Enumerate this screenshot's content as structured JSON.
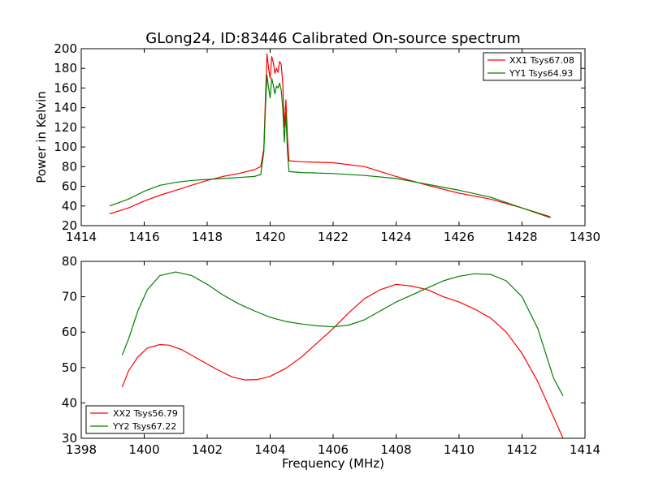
{
  "chart_data": [
    {
      "type": "line",
      "title": "GLong24, ID:83446 Calibrated On-source spectrum",
      "xlabel": "",
      "ylabel": "Power in Kelvin",
      "xlim": [
        1414,
        1430
      ],
      "ylim": [
        20,
        200
      ],
      "xticks": [
        1414,
        1416,
        1418,
        1420,
        1422,
        1424,
        1426,
        1428,
        1430
      ],
      "yticks": [
        20,
        40,
        60,
        80,
        100,
        120,
        140,
        160,
        180,
        200
      ],
      "legend_position": "top-right",
      "series": [
        {
          "name": "XX1 Tsys67.08",
          "color": "#ff0000",
          "points": [
            [
              1414.9,
              32
            ],
            [
              1415.5,
              38
            ],
            [
              1416.0,
              45
            ],
            [
              1416.5,
              51
            ],
            [
              1417.0,
              56
            ],
            [
              1417.5,
              61
            ],
            [
              1418.0,
              66
            ],
            [
              1418.5,
              70
            ],
            [
              1419.0,
              73
            ],
            [
              1419.5,
              77
            ],
            [
              1419.7,
              80
            ],
            [
              1419.8,
              98
            ],
            [
              1419.85,
              150
            ],
            [
              1419.9,
              195
            ],
            [
              1419.95,
              180
            ],
            [
              1420.0,
              170
            ],
            [
              1420.05,
              192
            ],
            [
              1420.1,
              186
            ],
            [
              1420.15,
              175
            ],
            [
              1420.2,
              180
            ],
            [
              1420.25,
              176
            ],
            [
              1420.3,
              187
            ],
            [
              1420.35,
              184
            ],
            [
              1420.4,
              165
            ],
            [
              1420.45,
              120
            ],
            [
              1420.5,
              148
            ],
            [
              1420.55,
              110
            ],
            [
              1420.6,
              86
            ],
            [
              1421.0,
              85
            ],
            [
              1422.0,
              84
            ],
            [
              1423.0,
              80
            ],
            [
              1424.0,
              70
            ],
            [
              1425.0,
              61
            ],
            [
              1426.0,
              53
            ],
            [
              1427.0,
              47
            ],
            [
              1428.0,
              38
            ],
            [
              1428.9,
              28
            ]
          ]
        },
        {
          "name": "YY1 Tsys64.93",
          "color": "#008000",
          "points": [
            [
              1414.9,
              40
            ],
            [
              1415.5,
              47
            ],
            [
              1416.0,
              55
            ],
            [
              1416.5,
              61
            ],
            [
              1417.0,
              64
            ],
            [
              1417.5,
              66
            ],
            [
              1418.0,
              67
            ],
            [
              1418.5,
              68
            ],
            [
              1419.0,
              69
            ],
            [
              1419.5,
              70
            ],
            [
              1419.7,
              72
            ],
            [
              1419.8,
              95
            ],
            [
              1419.85,
              140
            ],
            [
              1419.9,
              173
            ],
            [
              1419.95,
              160
            ],
            [
              1420.0,
              150
            ],
            [
              1420.05,
              170
            ],
            [
              1420.1,
              163
            ],
            [
              1420.15,
              154
            ],
            [
              1420.2,
              162
            ],
            [
              1420.25,
              160
            ],
            [
              1420.3,
              165
            ],
            [
              1420.35,
              158
            ],
            [
              1420.4,
              140
            ],
            [
              1420.45,
              105
            ],
            [
              1420.5,
              135
            ],
            [
              1420.55,
              95
            ],
            [
              1420.6,
              75
            ],
            [
              1421.0,
              74
            ],
            [
              1422.0,
              73
            ],
            [
              1423.0,
              71
            ],
            [
              1424.0,
              68
            ],
            [
              1425.0,
              62
            ],
            [
              1426.0,
              56
            ],
            [
              1427.0,
              49
            ],
            [
              1428.0,
              38
            ],
            [
              1428.9,
              29
            ]
          ]
        }
      ]
    },
    {
      "type": "line",
      "title": "",
      "xlabel": "Frequency (MHz)",
      "ylabel": "",
      "xlim": [
        1398,
        1414
      ],
      "ylim": [
        30,
        80
      ],
      "xticks": [
        1398,
        1400,
        1402,
        1404,
        1406,
        1408,
        1410,
        1412,
        1414
      ],
      "yticks": [
        30,
        40,
        50,
        60,
        70,
        80
      ],
      "legend_position": "bottom-left",
      "series": [
        {
          "name": "XX2 Tsys56.79",
          "color": "#ff0000",
          "points": [
            [
              1399.3,
              44.5
            ],
            [
              1399.5,
              49
            ],
            [
              1399.8,
              53
            ],
            [
              1400.1,
              55.5
            ],
            [
              1400.5,
              56.5
            ],
            [
              1400.8,
              56.3
            ],
            [
              1401.2,
              55
            ],
            [
              1401.8,
              52
            ],
            [
              1402.3,
              49.5
            ],
            [
              1402.8,
              47.3
            ],
            [
              1403.2,
              46.5
            ],
            [
              1403.6,
              46.6
            ],
            [
              1404.0,
              47.5
            ],
            [
              1404.5,
              49.8
            ],
            [
              1405.0,
              53
            ],
            [
              1405.5,
              57
            ],
            [
              1406.0,
              61
            ],
            [
              1406.5,
              65.5
            ],
            [
              1407.0,
              69.5
            ],
            [
              1407.5,
              72
            ],
            [
              1408.0,
              73.5
            ],
            [
              1408.5,
              73
            ],
            [
              1409.0,
              72
            ],
            [
              1409.5,
              70
            ],
            [
              1410.0,
              68.5
            ],
            [
              1410.5,
              66.5
            ],
            [
              1411.0,
              64
            ],
            [
              1411.5,
              60
            ],
            [
              1412.0,
              54
            ],
            [
              1412.5,
              46
            ],
            [
              1413.0,
              36
            ],
            [
              1413.3,
              30
            ]
          ]
        },
        {
          "name": "YY2 Tsys67.22",
          "color": "#008000",
          "points": [
            [
              1399.3,
              53.5
            ],
            [
              1399.5,
              58
            ],
            [
              1399.8,
              66
            ],
            [
              1400.1,
              72
            ],
            [
              1400.5,
              76
            ],
            [
              1401.0,
              77
            ],
            [
              1401.5,
              76
            ],
            [
              1402.0,
              73.5
            ],
            [
              1402.5,
              70.5
            ],
            [
              1403.0,
              68
            ],
            [
              1403.5,
              66
            ],
            [
              1404.0,
              64.2
            ],
            [
              1404.5,
              63
            ],
            [
              1405.0,
              62.3
            ],
            [
              1405.5,
              61.8
            ],
            [
              1406.0,
              61.5
            ],
            [
              1406.5,
              62
            ],
            [
              1407.0,
              63.5
            ],
            [
              1407.5,
              66
            ],
            [
              1408.0,
              68.5
            ],
            [
              1408.5,
              70.5
            ],
            [
              1409.0,
              72.5
            ],
            [
              1409.5,
              74.5
            ],
            [
              1410.0,
              75.8
            ],
            [
              1410.5,
              76.5
            ],
            [
              1411.0,
              76.3
            ],
            [
              1411.5,
              74.5
            ],
            [
              1412.0,
              70
            ],
            [
              1412.5,
              61
            ],
            [
              1413.0,
              47
            ],
            [
              1413.3,
              42
            ]
          ]
        }
      ]
    }
  ]
}
